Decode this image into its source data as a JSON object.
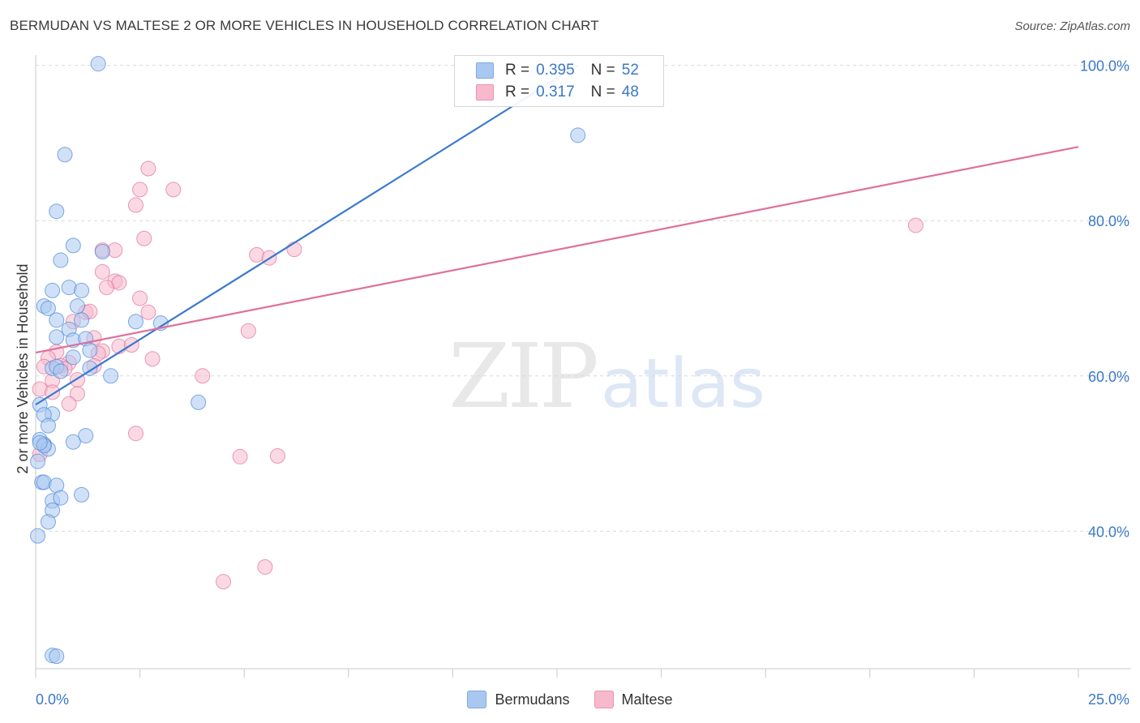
{
  "header": {
    "title": "BERMUDAN VS MALTESE 2 OR MORE VEHICLES IN HOUSEHOLD CORRELATION CHART",
    "source": "Source: ZipAtlas.com"
  },
  "watermark": {
    "zip": "ZIP",
    "atlas": "atlas"
  },
  "legend": {
    "rows": [
      {
        "r_label": "R =",
        "r_value": "0.395",
        "n_label": "N =",
        "n_value": "52",
        "color": "#a9c8f0"
      },
      {
        "r_label": "R =",
        "r_value": "0.317",
        "n_label": "N =",
        "n_value": "48",
        "color": "#f7b9cc"
      }
    ]
  },
  "chart_data": {
    "type": "scatter",
    "title": "BERMUDAN VS MALTESE 2 OR MORE VEHICLES IN HOUSEHOLD CORRELATION CHART",
    "xlabel": "",
    "ylabel": "2 or more Vehicles in Household",
    "xlim": [
      0,
      25
    ],
    "ylim": [
      20,
      102
    ],
    "x_tick_labels": [
      "0.0%",
      "25.0%"
    ],
    "y_ticks": [
      40,
      60,
      80,
      100
    ],
    "y_tick_labels": [
      "40.0%",
      "60.0%",
      "80.0%",
      "100.0%"
    ],
    "grid": true,
    "series": [
      {
        "name": "Bermudans",
        "color": "#4a86d8",
        "fill": "#a9c8f0",
        "trend": {
          "x": [
            0,
            13.0
          ],
          "y": [
            56.3,
            100.0
          ]
        },
        "points": [
          [
            1.5,
            100.2
          ],
          [
            0.7,
            88.5
          ],
          [
            0.5,
            81.2
          ],
          [
            0.9,
            76.8
          ],
          [
            0.6,
            74.9
          ],
          [
            1.6,
            76.0
          ],
          [
            0.4,
            71.0
          ],
          [
            0.8,
            71.4
          ],
          [
            1.1,
            71.0
          ],
          [
            0.2,
            69.0
          ],
          [
            0.3,
            68.7
          ],
          [
            1.0,
            69.0
          ],
          [
            0.5,
            67.2
          ],
          [
            0.8,
            66.0
          ],
          [
            1.1,
            67.2
          ],
          [
            2.4,
            67.0
          ],
          [
            3.0,
            66.8
          ],
          [
            0.5,
            65.0
          ],
          [
            0.9,
            64.6
          ],
          [
            1.2,
            64.8
          ],
          [
            1.3,
            63.3
          ],
          [
            0.9,
            62.4
          ],
          [
            0.4,
            61.0
          ],
          [
            0.5,
            61.2
          ],
          [
            0.6,
            60.6
          ],
          [
            1.3,
            61.0
          ],
          [
            1.8,
            60.0
          ],
          [
            0.1,
            56.3
          ],
          [
            3.9,
            56.6
          ],
          [
            0.4,
            55.1
          ],
          [
            0.2,
            55.0
          ],
          [
            0.3,
            53.6
          ],
          [
            1.2,
            52.3
          ],
          [
            0.9,
            51.5
          ],
          [
            0.1,
            51.8
          ],
          [
            0.2,
            51.2
          ],
          [
            0.3,
            50.6
          ],
          [
            0.2,
            51.0
          ],
          [
            0.05,
            49.0
          ],
          [
            0.15,
            46.3
          ],
          [
            0.2,
            46.3
          ],
          [
            0.5,
            45.9
          ],
          [
            1.1,
            44.7
          ],
          [
            0.4,
            43.9
          ],
          [
            0.6,
            44.3
          ],
          [
            0.4,
            42.7
          ],
          [
            0.3,
            41.2
          ],
          [
            0.05,
            39.4
          ],
          [
            0.4,
            24.0
          ],
          [
            0.5,
            23.9
          ],
          [
            13.0,
            91.0
          ],
          [
            0.1,
            51.4
          ]
        ]
      },
      {
        "name": "Maltese",
        "color": "#e0709b",
        "fill": "#f7b9cc",
        "trend": {
          "x": [
            0,
            25
          ],
          "y": [
            63.0,
            89.5
          ]
        },
        "points": [
          [
            2.7,
            86.7
          ],
          [
            2.5,
            84.0
          ],
          [
            3.3,
            84.0
          ],
          [
            2.4,
            82.0
          ],
          [
            2.6,
            77.7
          ],
          [
            1.6,
            76.2
          ],
          [
            1.9,
            76.2
          ],
          [
            5.3,
            75.6
          ],
          [
            5.6,
            75.2
          ],
          [
            6.2,
            76.3
          ],
          [
            1.6,
            73.4
          ],
          [
            1.9,
            72.2
          ],
          [
            2.0,
            72.0
          ],
          [
            1.7,
            71.4
          ],
          [
            2.5,
            70.0
          ],
          [
            1.2,
            68.2
          ],
          [
            1.3,
            68.3
          ],
          [
            2.7,
            68.2
          ],
          [
            0.9,
            67.0
          ],
          [
            5.1,
            65.8
          ],
          [
            1.4,
            64.9
          ],
          [
            2.0,
            63.8
          ],
          [
            2.3,
            64.0
          ],
          [
            1.6,
            63.2
          ],
          [
            1.5,
            62.9
          ],
          [
            0.5,
            63.1
          ],
          [
            0.3,
            62.3
          ],
          [
            2.8,
            62.2
          ],
          [
            1.4,
            61.3
          ],
          [
            0.8,
            61.7
          ],
          [
            0.2,
            61.2
          ],
          [
            0.6,
            61.3
          ],
          [
            0.7,
            60.9
          ],
          [
            4.0,
            60.0
          ],
          [
            0.4,
            59.4
          ],
          [
            1.0,
            59.5
          ],
          [
            0.1,
            58.3
          ],
          [
            0.4,
            57.9
          ],
          [
            1.0,
            57.7
          ],
          [
            0.8,
            56.4
          ],
          [
            2.4,
            52.6
          ],
          [
            0.2,
            51.1
          ],
          [
            0.1,
            49.9
          ],
          [
            4.9,
            49.6
          ],
          [
            5.8,
            49.7
          ],
          [
            5.5,
            35.4
          ],
          [
            4.5,
            33.5
          ],
          [
            21.1,
            79.4
          ]
        ]
      }
    ]
  }
}
